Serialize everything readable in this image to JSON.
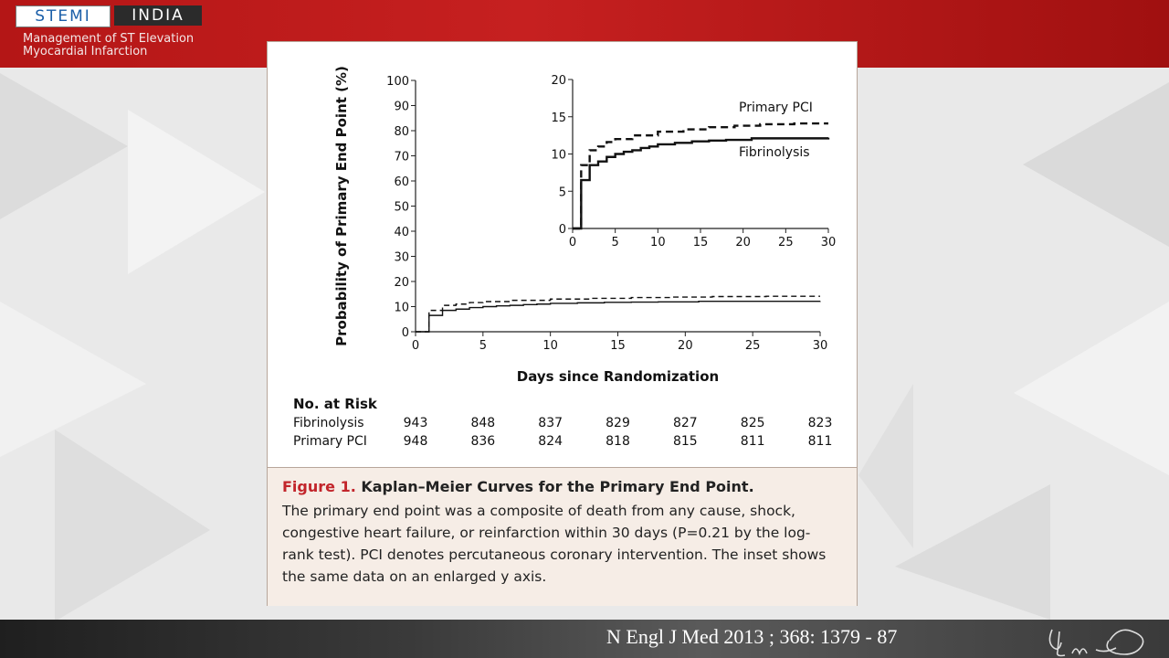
{
  "header": {
    "logo_left": "STEMI",
    "logo_right": "INDIA",
    "subtitle_line1": "Management of ST Elevation",
    "subtitle_line2": "Myocardial Infarction"
  },
  "footer": {
    "citation": "N Engl J Med 2013 ; 368: 1379 - 87"
  },
  "colors": {
    "header_red": "#b41616",
    "caption_red": "#c2252b",
    "caption_bg": "#f6ede6"
  },
  "chart_data": [
    {
      "id": "main",
      "type": "line",
      "xlabel": "Days since Randomization",
      "ylabel": "Probability of Primary End Point (%)",
      "xlim": [
        0,
        30
      ],
      "ylim": [
        0,
        100
      ],
      "x_ticks": [
        0,
        5,
        10,
        15,
        20,
        25,
        30
      ],
      "y_ticks": [
        0,
        10,
        20,
        30,
        40,
        50,
        60,
        70,
        80,
        90,
        100
      ],
      "grid": false,
      "series": [
        {
          "name": "Fibrinolysis",
          "style": "solid",
          "x": [
            0,
            1,
            1,
            2,
            2,
            3,
            4,
            5,
            6,
            7,
            8,
            9,
            10,
            12,
            14,
            16,
            18,
            21,
            30
          ],
          "y": [
            0,
            0,
            6.5,
            6.5,
            8.5,
            9,
            9.6,
            10,
            10.3,
            10.5,
            10.8,
            11,
            11.3,
            11.5,
            11.7,
            11.8,
            11.9,
            12.1,
            12.2
          ]
        },
        {
          "name": "Primary PCI",
          "style": "dashed",
          "x": [
            0,
            1,
            1,
            2,
            2,
            3,
            4,
            5,
            7,
            10,
            13,
            16,
            19,
            22,
            26,
            30
          ],
          "y": [
            0,
            0,
            8.5,
            8.5,
            10.5,
            11,
            11.6,
            12,
            12.5,
            13,
            13.3,
            13.6,
            13.8,
            14,
            14.1,
            14.1
          ]
        }
      ]
    },
    {
      "id": "inset",
      "type": "line",
      "xlim": [
        0,
        30
      ],
      "ylim": [
        0,
        20
      ],
      "x_ticks": [
        0,
        5,
        10,
        15,
        20,
        25,
        30
      ],
      "y_ticks": [
        0,
        5,
        10,
        15,
        20
      ],
      "labels": [
        {
          "text": "Primary PCI",
          "series": "Primary PCI"
        },
        {
          "text": "Fibrinolysis",
          "series": "Fibrinolysis"
        }
      ]
    }
  ],
  "risk_table": {
    "title": "No. at Risk",
    "rows": [
      {
        "label": "Fibrinolysis",
        "values": [
          "943",
          "848",
          "837",
          "829",
          "827",
          "825",
          "823"
        ]
      },
      {
        "label": "Primary PCI",
        "values": [
          "948",
          "836",
          "824",
          "818",
          "815",
          "811",
          "811"
        ]
      }
    ]
  },
  "caption": {
    "label": "Figure 1.",
    "title": "Kaplan–Meier Curves for the Primary End Point.",
    "body": "The primary end point was a composite of death from any cause, shock, congestive heart failure, or reinfarction within 30 days (P=0.21 by the log-rank test). PCI denotes percutaneous coronary intervention. The inset shows the same data on an enlarged y axis."
  }
}
